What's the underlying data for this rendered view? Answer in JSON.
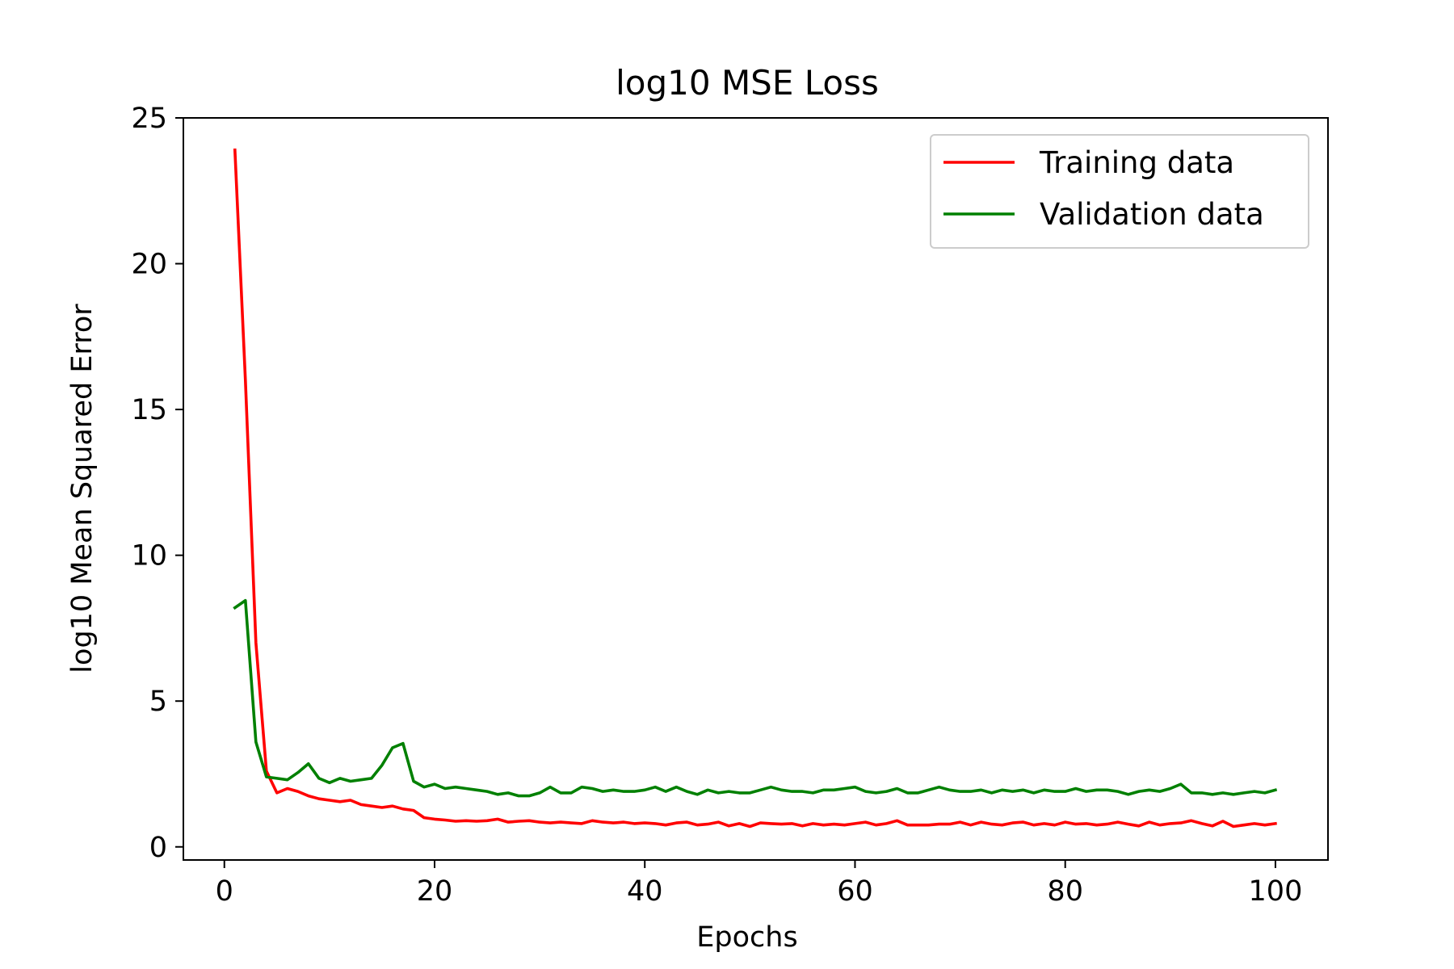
{
  "chart_data": {
    "type": "line",
    "title": "log10 MSE Loss",
    "xlabel": "Epochs",
    "ylabel": "log10 Mean Squared Error",
    "xlim": [
      -3.9,
      105
    ],
    "ylim": [
      -0.45,
      25
    ],
    "xticks": [
      0,
      20,
      40,
      60,
      80,
      100
    ],
    "yticks": [
      0,
      5,
      10,
      15,
      20,
      25
    ],
    "grid": false,
    "legend_position": "top-right",
    "x": [
      1,
      2,
      3,
      4,
      5,
      6,
      7,
      8,
      9,
      10,
      11,
      12,
      13,
      14,
      15,
      16,
      17,
      18,
      19,
      20,
      21,
      22,
      23,
      24,
      25,
      26,
      27,
      28,
      29,
      30,
      31,
      32,
      33,
      34,
      35,
      36,
      37,
      38,
      39,
      40,
      41,
      42,
      43,
      44,
      45,
      46,
      47,
      48,
      49,
      50,
      51,
      52,
      53,
      54,
      55,
      56,
      57,
      58,
      59,
      60,
      61,
      62,
      63,
      64,
      65,
      66,
      67,
      68,
      69,
      70,
      71,
      72,
      73,
      74,
      75,
      76,
      77,
      78,
      79,
      80,
      81,
      82,
      83,
      84,
      85,
      86,
      87,
      88,
      89,
      90,
      91,
      92,
      93,
      94,
      95,
      96,
      97,
      98,
      99,
      100
    ],
    "series": [
      {
        "name": "Training data",
        "color": "#ff0000",
        "values": [
          23.9,
          16.0,
          7.0,
          2.6,
          1.85,
          2.0,
          1.9,
          1.75,
          1.65,
          1.6,
          1.55,
          1.6,
          1.45,
          1.4,
          1.35,
          1.4,
          1.3,
          1.25,
          1.0,
          0.95,
          0.92,
          0.88,
          0.9,
          0.88,
          0.9,
          0.95,
          0.85,
          0.88,
          0.9,
          0.85,
          0.82,
          0.85,
          0.82,
          0.8,
          0.9,
          0.85,
          0.82,
          0.85,
          0.8,
          0.82,
          0.8,
          0.75,
          0.82,
          0.85,
          0.75,
          0.78,
          0.85,
          0.72,
          0.8,
          0.7,
          0.82,
          0.8,
          0.78,
          0.8,
          0.72,
          0.8,
          0.75,
          0.78,
          0.75,
          0.8,
          0.85,
          0.75,
          0.8,
          0.9,
          0.75,
          0.75,
          0.75,
          0.78,
          0.78,
          0.85,
          0.75,
          0.85,
          0.78,
          0.75,
          0.82,
          0.85,
          0.75,
          0.8,
          0.75,
          0.85,
          0.78,
          0.8,
          0.75,
          0.78,
          0.85,
          0.78,
          0.72,
          0.85,
          0.75,
          0.8,
          0.82,
          0.9,
          0.8,
          0.72,
          0.88,
          0.7,
          0.75,
          0.8,
          0.75,
          0.8
        ]
      },
      {
        "name": "Validation data",
        "color": "#008000",
        "values": [
          8.2,
          8.45,
          3.6,
          2.4,
          2.35,
          2.3,
          2.55,
          2.85,
          2.35,
          2.2,
          2.35,
          2.25,
          2.3,
          2.35,
          2.8,
          3.4,
          3.55,
          2.25,
          2.05,
          2.15,
          2.0,
          2.05,
          2.0,
          1.95,
          1.9,
          1.8,
          1.85,
          1.75,
          1.75,
          1.85,
          2.05,
          1.85,
          1.85,
          2.05,
          2.0,
          1.9,
          1.95,
          1.9,
          1.9,
          1.95,
          2.05,
          1.9,
          2.05,
          1.9,
          1.8,
          1.95,
          1.85,
          1.9,
          1.85,
          1.85,
          1.95,
          2.05,
          1.95,
          1.9,
          1.9,
          1.85,
          1.95,
          1.95,
          2.0,
          2.05,
          1.9,
          1.85,
          1.9,
          2.0,
          1.85,
          1.85,
          1.95,
          2.05,
          1.95,
          1.9,
          1.9,
          1.95,
          1.85,
          1.95,
          1.9,
          1.95,
          1.85,
          1.95,
          1.9,
          1.9,
          2.0,
          1.9,
          1.95,
          1.95,
          1.9,
          1.8,
          1.9,
          1.95,
          1.9,
          2.0,
          2.15,
          1.85,
          1.85,
          1.8,
          1.85,
          1.8,
          1.85,
          1.9,
          1.85,
          1.95
        ]
      }
    ]
  }
}
